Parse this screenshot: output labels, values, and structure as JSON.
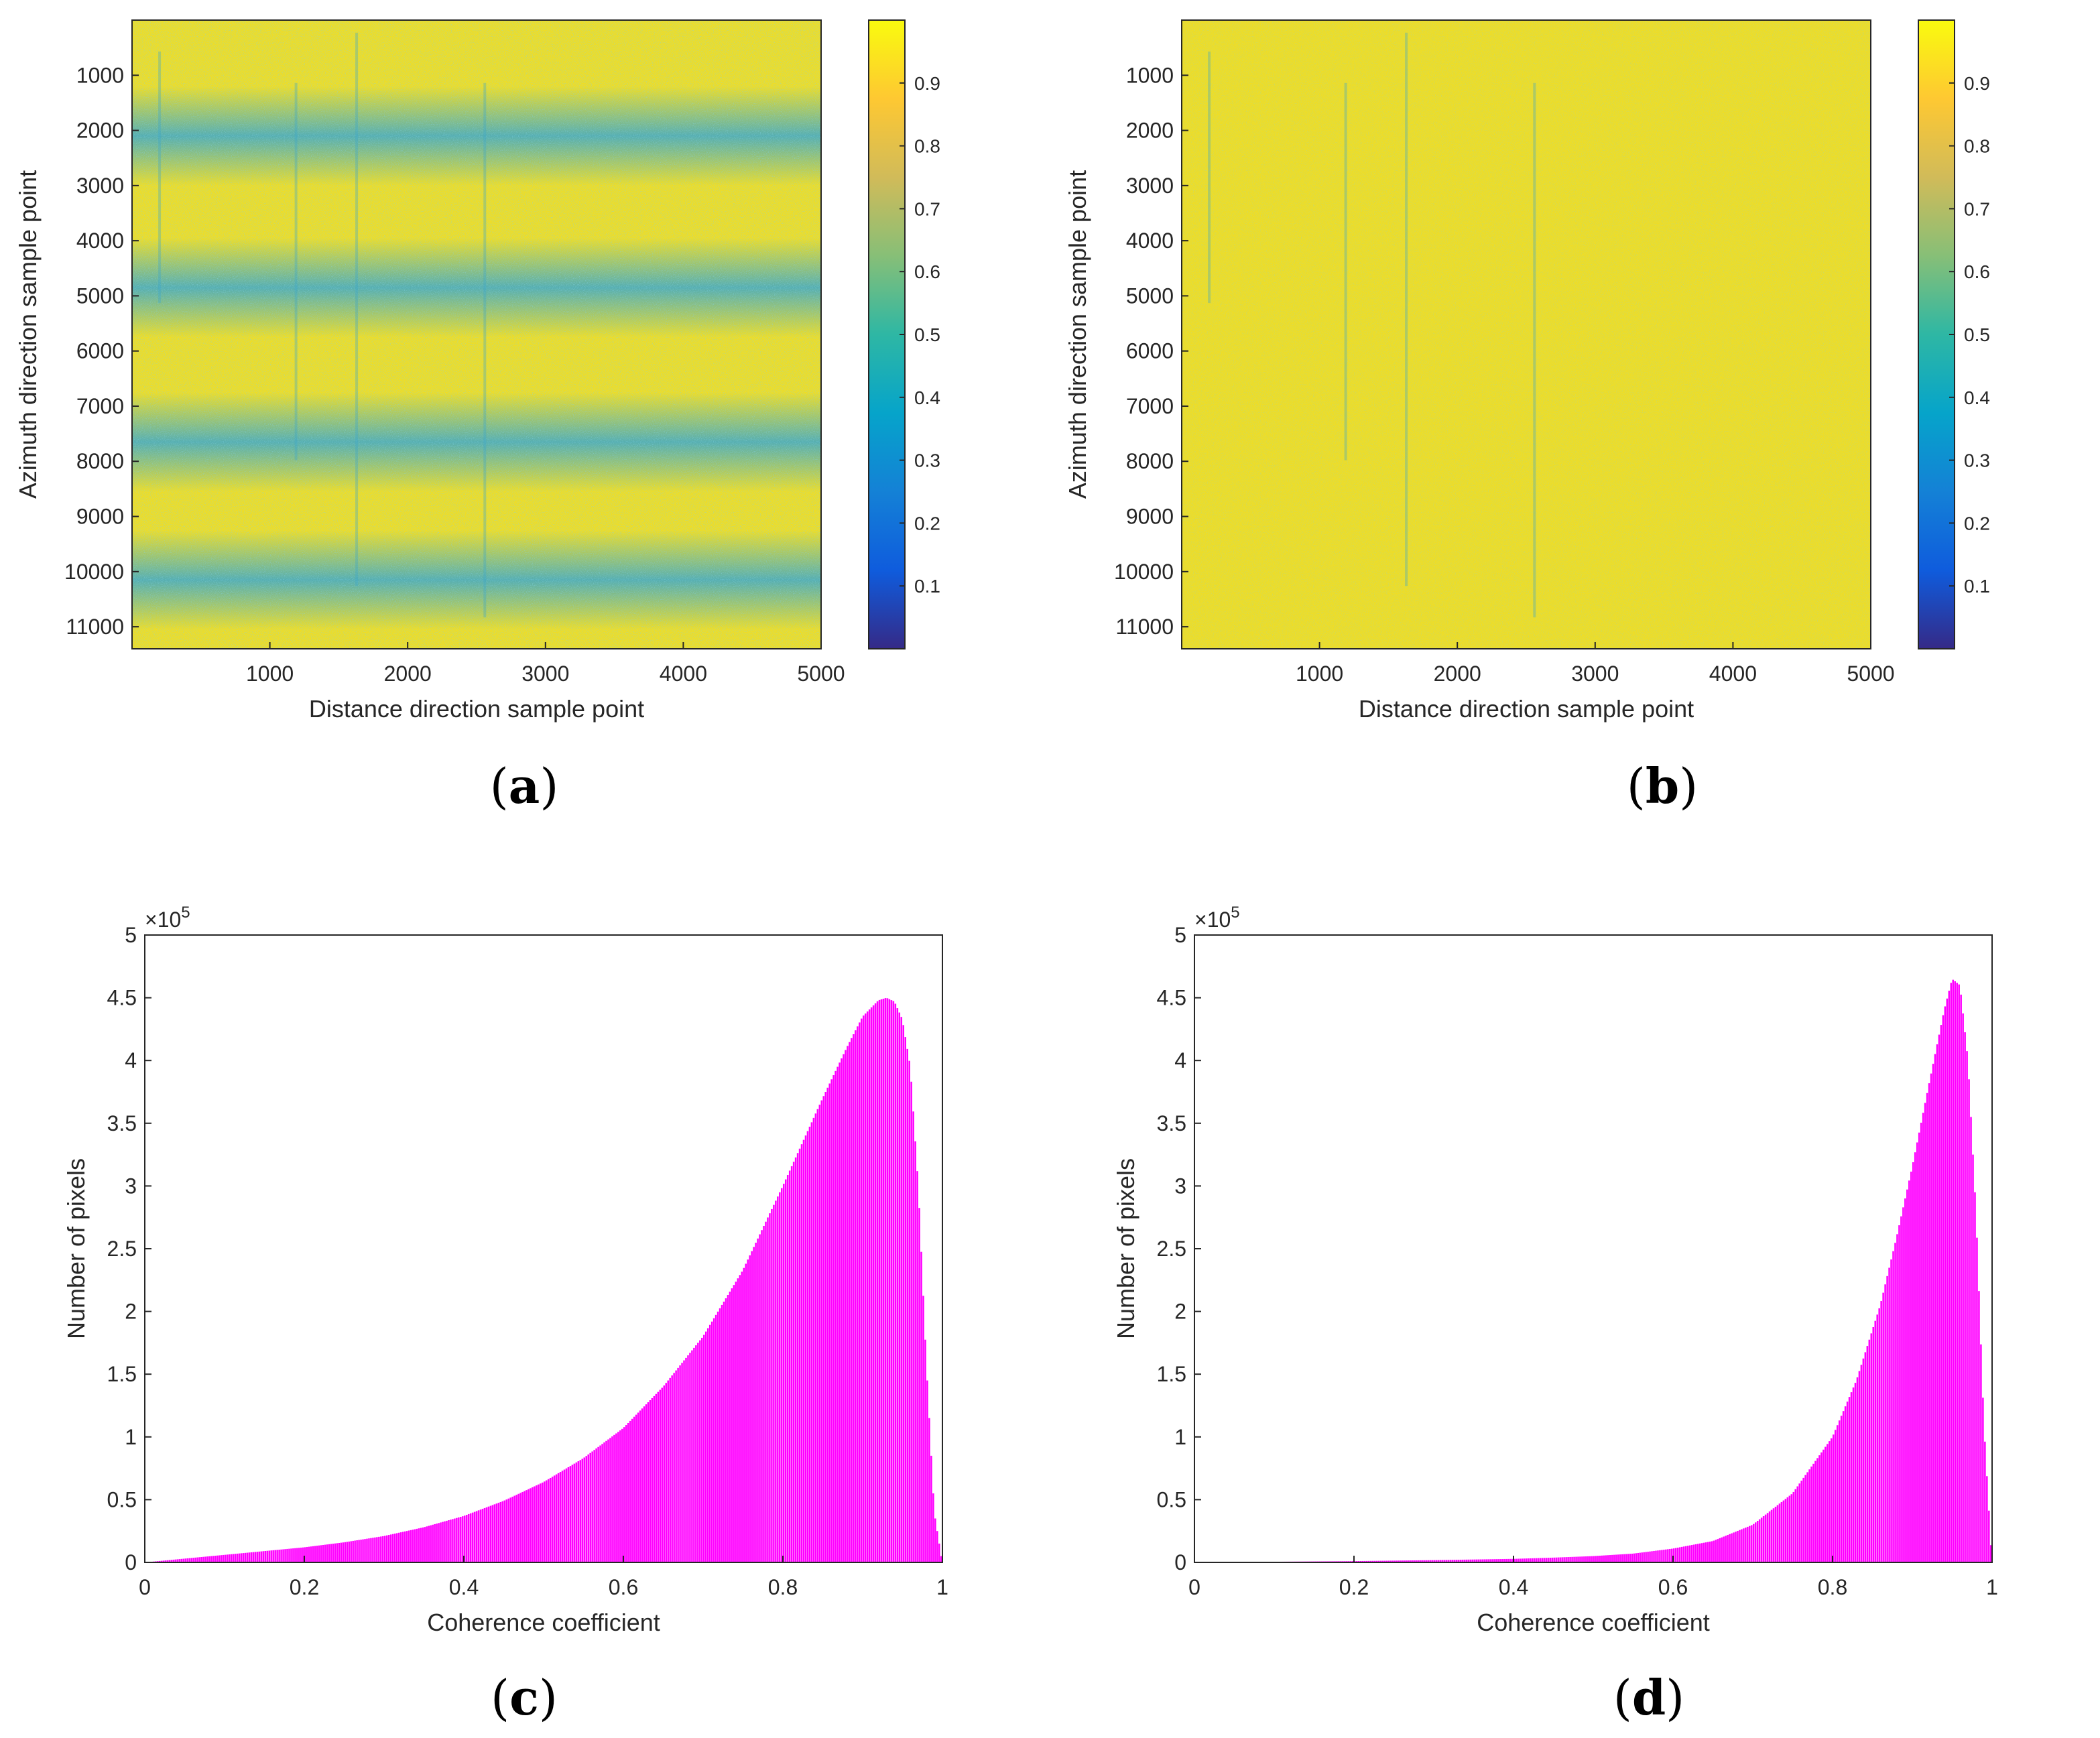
{
  "panels": {
    "a": {
      "caption_letter": "a",
      "caption_open": "(",
      "caption_close": ")"
    },
    "b": {
      "caption_letter": "b",
      "caption_open": "(",
      "caption_close": ")"
    },
    "c": {
      "caption_letter": "c",
      "caption_open": "(",
      "caption_close": ")"
    },
    "d": {
      "caption_letter": "d",
      "caption_open": "(",
      "caption_close": ")"
    }
  },
  "colors": {
    "parula": [
      "#352a87",
      "#0f5cdd",
      "#1481d6",
      "#06a4ca",
      "#2eb7a4",
      "#87bf77",
      "#d1bb59",
      "#fec832",
      "#f9fb0e"
    ],
    "histogram_fill": "#ff00ff",
    "axis": "#262626",
    "band_low": "#3ba6c9",
    "band_high": "#ecd82a"
  },
  "chart_data": [
    {
      "id": "a",
      "type": "heatmap",
      "title": "",
      "xlabel": "Distance direction sample point",
      "ylabel": "Azimuth direction sample point",
      "xlim": [
        0,
        5000
      ],
      "ylim": [
        0,
        11400
      ],
      "x_ticks": [
        "1000",
        "2000",
        "3000",
        "4000",
        "5000"
      ],
      "x_tick_values": [
        1000,
        2000,
        3000,
        4000,
        5000
      ],
      "y_ticks": [
        "1000",
        "2000",
        "3000",
        "4000",
        "5000",
        "6000",
        "7000",
        "8000",
        "9000",
        "10000",
        "11000"
      ],
      "y_tick_values": [
        1000,
        2000,
        3000,
        4000,
        5000,
        6000,
        7000,
        8000,
        9000,
        10000,
        11000
      ],
      "colorbar_ticks": [
        "0.1",
        "0.2",
        "0.3",
        "0.4",
        "0.5",
        "0.6",
        "0.7",
        "0.8",
        "0.9"
      ],
      "colorbar_tick_values": [
        0.1,
        0.2,
        0.3,
        0.4,
        0.5,
        0.6,
        0.7,
        0.8,
        0.9
      ],
      "colorbar_range": [
        0,
        1
      ],
      "low_coherence_band_centers": [
        2100,
        4850,
        7650,
        10150
      ],
      "band_width": 900,
      "background_coherence": 0.88,
      "band_coherence": 0.55
    },
    {
      "id": "b",
      "type": "heatmap",
      "title": "",
      "xlabel": "Distance direction sample point",
      "ylabel": "Azimuth direction sample point",
      "xlim": [
        0,
        5000
      ],
      "ylim": [
        0,
        11400
      ],
      "x_ticks": [
        "1000",
        "2000",
        "3000",
        "4000",
        "5000"
      ],
      "x_tick_values": [
        1000,
        2000,
        3000,
        4000,
        5000
      ],
      "y_ticks": [
        "1000",
        "2000",
        "3000",
        "4000",
        "5000",
        "6000",
        "7000",
        "8000",
        "9000",
        "10000",
        "11000"
      ],
      "y_tick_values": [
        1000,
        2000,
        3000,
        4000,
        5000,
        6000,
        7000,
        8000,
        9000,
        10000,
        11000
      ],
      "colorbar_ticks": [
        "0.1",
        "0.2",
        "0.3",
        "0.4",
        "0.5",
        "0.6",
        "0.7",
        "0.8",
        "0.9"
      ],
      "colorbar_tick_values": [
        0.1,
        0.2,
        0.3,
        0.4,
        0.5,
        0.6,
        0.7,
        0.8,
        0.9
      ],
      "colorbar_range": [
        0,
        1
      ],
      "background_coherence": 0.93
    },
    {
      "id": "c",
      "type": "bar",
      "title": "",
      "xlabel": "Coherence coefficient",
      "ylabel": "Number of pixels",
      "xlim": [
        0,
        1
      ],
      "ylim": [
        0,
        500000
      ],
      "x_ticks": [
        "0",
        "0.2",
        "0.4",
        "0.6",
        "0.8",
        "1"
      ],
      "x_tick_values": [
        0,
        0.2,
        0.4,
        0.6,
        0.8,
        1
      ],
      "y_ticks": [
        "0",
        "0.5",
        "1",
        "1.5",
        "2",
        "2.5",
        "3",
        "3.5",
        "4",
        "4.5",
        "5"
      ],
      "y_tick_values": [
        0,
        50000,
        100000,
        150000,
        200000,
        250000,
        300000,
        350000,
        400000,
        450000,
        500000
      ],
      "exponent_base": "×10",
      "exponent_power": "5",
      "x": [
        0,
        0.05,
        0.1,
        0.15,
        0.2,
        0.25,
        0.3,
        0.35,
        0.4,
        0.45,
        0.5,
        0.55,
        0.6,
        0.65,
        0.7,
        0.75,
        0.8,
        0.85,
        0.88,
        0.9,
        0.92,
        0.93,
        0.94,
        0.95,
        0.96,
        0.97,
        0.98,
        0.99,
        1.0
      ],
      "values": [
        0,
        3000,
        6000,
        9000,
        12000,
        16000,
        21000,
        28000,
        37000,
        49000,
        64000,
        83000,
        107000,
        140000,
        180000,
        233000,
        300000,
        370000,
        410000,
        435000,
        448000,
        450000,
        447000,
        433000,
        395000,
        300000,
        160000,
        40000,
        0
      ]
    },
    {
      "id": "d",
      "type": "bar",
      "title": "",
      "xlabel": "Coherence coefficient",
      "ylabel": "Number of pixels",
      "xlim": [
        0,
        1
      ],
      "ylim": [
        0,
        500000
      ],
      "x_ticks": [
        "0",
        "0.2",
        "0.4",
        "0.6",
        "0.8",
        "1"
      ],
      "x_tick_values": [
        0,
        0.2,
        0.4,
        0.6,
        0.8,
        1
      ],
      "y_ticks": [
        "0",
        "0.5",
        "1",
        "1.5",
        "2",
        "2.5",
        "3",
        "3.5",
        "4",
        "4.5",
        "5"
      ],
      "y_tick_values": [
        0,
        50000,
        100000,
        150000,
        200000,
        250000,
        300000,
        350000,
        400000,
        450000,
        500000
      ],
      "exponent_base": "×10",
      "exponent_power": "5",
      "x": [
        0,
        0.1,
        0.2,
        0.3,
        0.4,
        0.45,
        0.5,
        0.55,
        0.6,
        0.65,
        0.7,
        0.75,
        0.8,
        0.83,
        0.86,
        0.88,
        0.9,
        0.92,
        0.94,
        0.95,
        0.96,
        0.97,
        0.98,
        0.99,
        1.0
      ],
      "values": [
        0,
        500,
        1000,
        1800,
        2800,
        3800,
        5000,
        7000,
        11000,
        17000,
        30000,
        55000,
        100000,
        145000,
        205000,
        258000,
        315000,
        378000,
        440000,
        465000,
        460000,
        400000,
        280000,
        110000,
        0
      ]
    }
  ]
}
